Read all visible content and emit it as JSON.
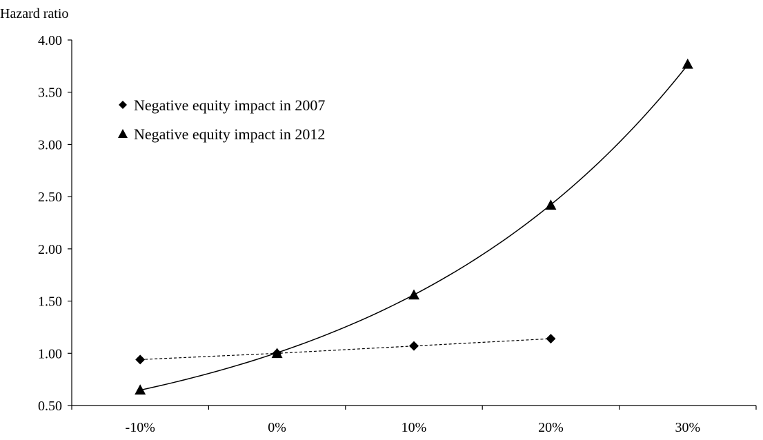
{
  "chart_data": {
    "type": "scatter",
    "title": "",
    "ylabel": "Hazard ratio",
    "xlabel": "",
    "categories": [
      "-10%",
      "0%",
      "10%",
      "20%",
      "30%"
    ],
    "ylim": [
      0.5,
      4.0
    ],
    "yticks": [
      "0.50",
      "1.00",
      "1.50",
      "2.00",
      "2.50",
      "3.00",
      "3.50",
      "4.00"
    ],
    "grid": false,
    "legend_position": "top-left",
    "series": [
      {
        "name": "Negative equity impact in 2007",
        "marker": "diamond",
        "line_style": "dashed",
        "color": "#000000",
        "values": [
          0.94,
          1.0,
          1.07,
          1.14,
          null
        ]
      },
      {
        "name": "Negative equity impact in 2012",
        "marker": "triangle",
        "line_style": "solid",
        "trendline": "exponential",
        "color": "#000000",
        "values": [
          0.65,
          1.0,
          1.56,
          2.42,
          3.77
        ]
      }
    ]
  }
}
